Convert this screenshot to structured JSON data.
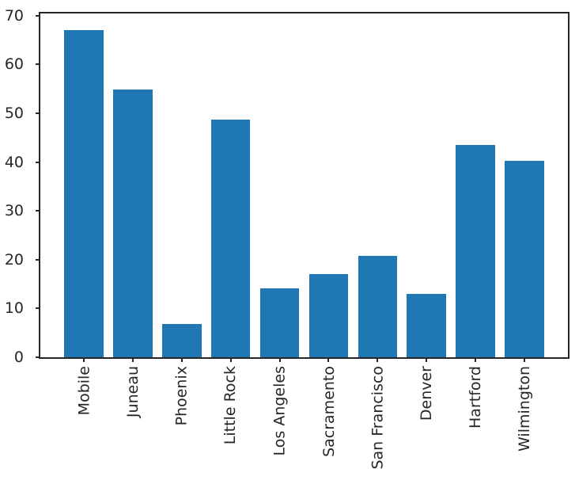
{
  "figure": {
    "background_color": "#ffffff"
  },
  "chart_data": {
    "type": "bar",
    "title": "",
    "xlabel": "",
    "ylabel": "",
    "categories": [
      "Mobile",
      "Juneau",
      "Phoenix",
      "Little Rock",
      "Los Angeles",
      "Sacramento",
      "San Francisco",
      "Denver",
      "Hartford",
      "Wilmington"
    ],
    "values": [
      67.1,
      54.9,
      6.8,
      48.7,
      14.1,
      17.0,
      20.8,
      13.0,
      43.5,
      40.3
    ],
    "yticks": [
      0,
      10,
      20,
      30,
      40,
      50,
      60,
      70
    ],
    "ylim": [
      0,
      70.45
    ],
    "xlim": [
      -0.89,
      9.89
    ],
    "bar_width_units": 0.8,
    "x_tick_rotation_deg": 90,
    "grid": false,
    "legend": false,
    "bar_color": "#1f77b4",
    "axis_color": "#262626",
    "tick_label_color": "#262626"
  }
}
